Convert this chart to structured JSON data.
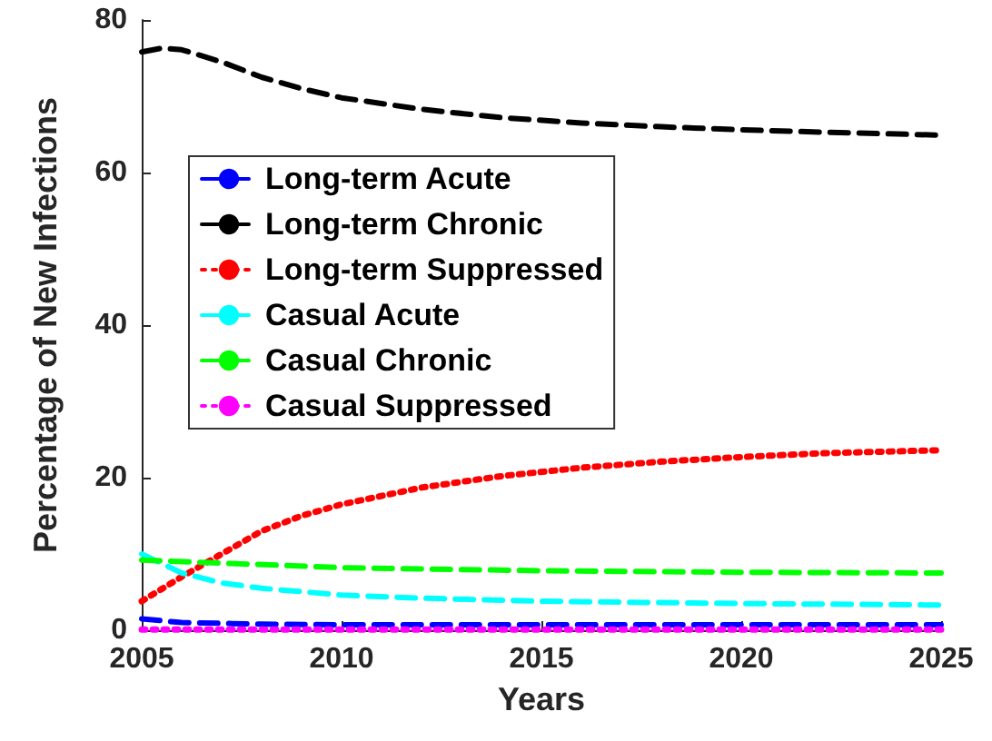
{
  "chart_data": {
    "type": "line",
    "xlabel": "Years",
    "ylabel": "Percentage of New Infections",
    "xlim": [
      2005,
      2025
    ],
    "xticks": [
      2005,
      2010,
      2015,
      2020,
      2025
    ],
    "ylim": [
      0,
      80
    ],
    "yticks": [
      0,
      20,
      40,
      60,
      80
    ],
    "grid": false,
    "legend": "top left",
    "marker": "none",
    "series": [
      {
        "name": "Long-term Acute",
        "color": "#0000ff",
        "line_style": "dashed",
        "x": [
          2005,
          2006,
          2008,
          2010,
          2015,
          2020,
          2025
        ],
        "values": [
          1.5,
          1.0,
          0.8,
          0.7,
          0.7,
          0.7,
          0.7
        ]
      },
      {
        "name": "Long-term Chronic",
        "color": "#000000",
        "line_style": "dashed",
        "x": [
          2005,
          2005.5,
          2006,
          2007,
          2008,
          2009,
          2010,
          2012,
          2014,
          2016,
          2018,
          2020,
          2022,
          2025
        ],
        "values": [
          75.8,
          76.3,
          76.1,
          74.5,
          72.5,
          71,
          69.8,
          68.3,
          67.2,
          66.5,
          66,
          65.6,
          65.3,
          64.9
        ]
      },
      {
        "name": "Long-term Suppressed",
        "color": "#ff0000",
        "line_style": "dotted",
        "x": [
          2005,
          2006,
          2007,
          2008,
          2009,
          2010,
          2012,
          2014,
          2016,
          2018,
          2020,
          2022,
          2025
        ],
        "values": [
          3.8,
          7,
          10,
          13,
          15,
          16.5,
          18.7,
          20.2,
          21.3,
          22.1,
          22.7,
          23.2,
          23.6
        ]
      },
      {
        "name": "Casual Acute",
        "color": "#00ffff",
        "line_style": "dashed",
        "x": [
          2005,
          2006,
          2007,
          2008,
          2010,
          2012,
          2015,
          2020,
          2025
        ],
        "values": [
          10,
          7.5,
          6.2,
          5.5,
          4.6,
          4.2,
          3.8,
          3.5,
          3.3
        ]
      },
      {
        "name": "Casual Chronic",
        "color": "#00ff00",
        "line_style": "dashed",
        "x": [
          2005,
          2010,
          2015,
          2020,
          2025
        ],
        "values": [
          9.2,
          8.2,
          7.8,
          7.6,
          7.5
        ]
      },
      {
        "name": "Casual Suppressed",
        "color": "#ff00ff",
        "line_style": "dotted",
        "x": [
          2005,
          2010,
          2015,
          2020,
          2025
        ],
        "values": [
          0.1,
          0.1,
          0.1,
          0.1,
          0.1
        ]
      }
    ]
  }
}
